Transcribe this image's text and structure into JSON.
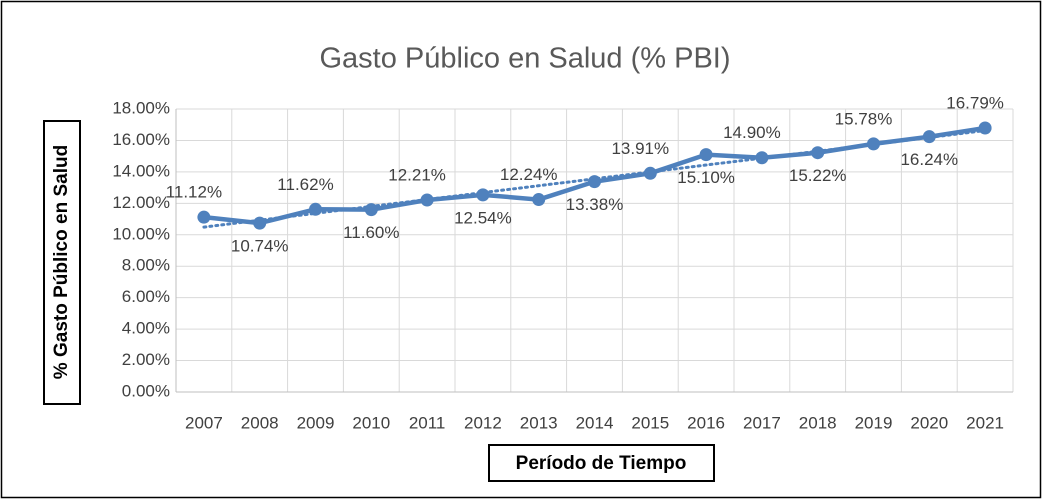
{
  "chart_data": {
    "type": "line",
    "title": "Gasto Público en Salud (% PBI)",
    "x_label": "Período de Tiempo",
    "y_label": "% Gasto Público en Salud",
    "categories": [
      "2007",
      "2008",
      "2009",
      "2010",
      "2011",
      "2012",
      "2013",
      "2014",
      "2015",
      "2016",
      "2017",
      "2018",
      "2019",
      "2020",
      "2021"
    ],
    "series": [
      {
        "name": "Gasto Público en Salud (% PBI)",
        "color": "#4f81bd",
        "values": [
          11.12,
          10.74,
          11.62,
          11.6,
          12.21,
          12.54,
          12.24,
          13.38,
          13.91,
          15.1,
          14.9,
          15.22,
          15.78,
          16.24,
          16.79
        ],
        "value_labels": [
          "11.12%",
          "10.74%",
          "11.62%",
          "11.60%",
          "12.21%",
          "12.54%",
          "12.24%",
          "13.38%",
          "13.91%",
          "15.10%",
          "14.90%",
          "15.22%",
          "15.78%",
          "16.24%",
          "16.79%"
        ]
      }
    ],
    "trendline": "linear",
    "ylim": [
      0,
      18
    ],
    "yticks": [
      {
        "value": 0,
        "label": "0.00%"
      },
      {
        "value": 2,
        "label": "2.00%"
      },
      {
        "value": 4,
        "label": "4.00%"
      },
      {
        "value": 6,
        "label": "6.00%"
      },
      {
        "value": 8,
        "label": "8.00%"
      },
      {
        "value": 10,
        "label": "10.00%"
      },
      {
        "value": 12,
        "label": "12.00%"
      },
      {
        "value": 14,
        "label": "14.00%"
      },
      {
        "value": 16,
        "label": "16.00%"
      },
      {
        "value": 18,
        "label": "18.00%"
      }
    ],
    "grid": true
  }
}
